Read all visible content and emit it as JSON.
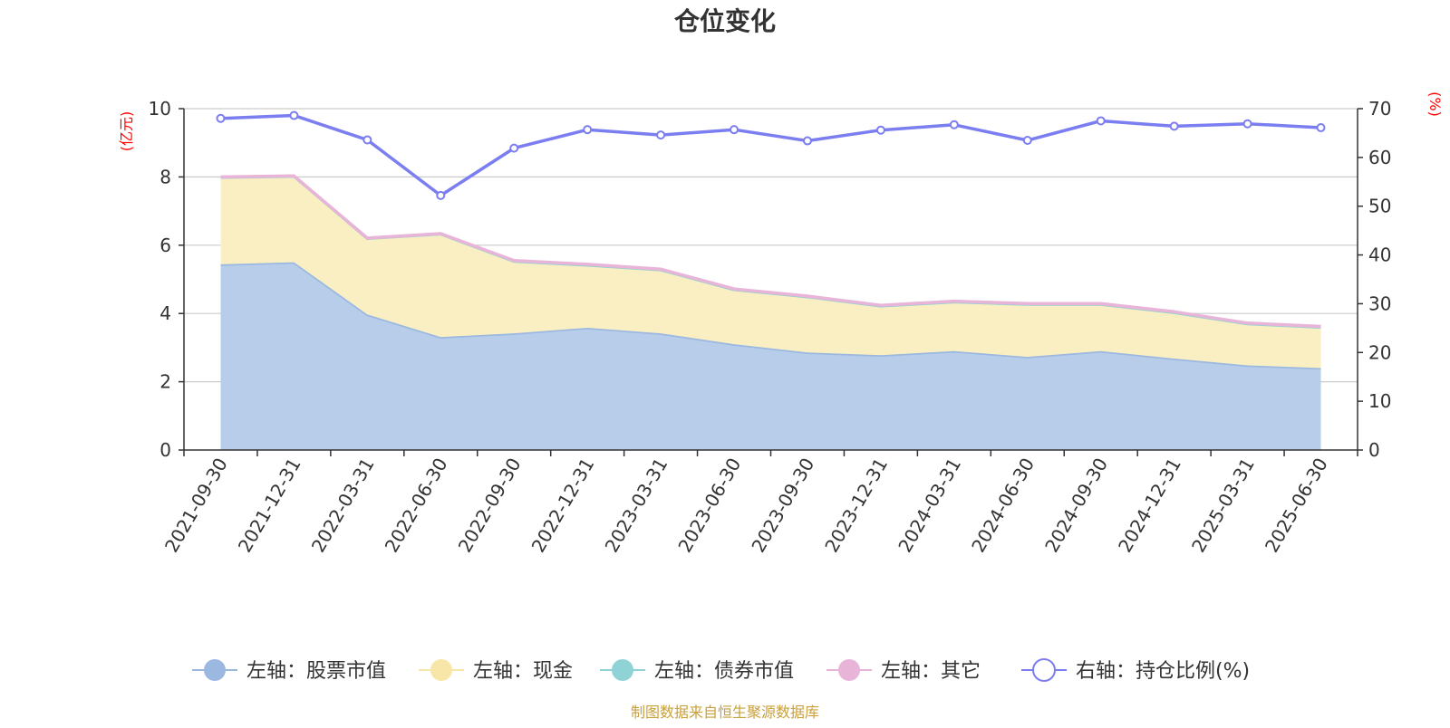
{
  "chart_data": {
    "type": "area",
    "title": "仓位变化",
    "left_axis_label": "(亿元)",
    "right_axis_label": "(%)",
    "left_ylim": [
      0,
      10
    ],
    "right_ylim": [
      0,
      70
    ],
    "left_ticks": [
      "0",
      "2",
      "4",
      "6",
      "8",
      "10"
    ],
    "right_ticks": [
      "0",
      "10",
      "20",
      "30",
      "40",
      "50",
      "60",
      "70"
    ],
    "categories": [
      "2021-09-30",
      "2021-12-31",
      "2022-03-31",
      "2022-06-30",
      "2022-09-30",
      "2022-12-31",
      "2023-03-31",
      "2023-06-30",
      "2023-09-30",
      "2023-12-31",
      "2024-03-31",
      "2024-06-30",
      "2024-09-30",
      "2024-12-31",
      "2025-03-31",
      "2025-06-30"
    ],
    "series": [
      {
        "name": "左轴：股票市值",
        "axis": "left",
        "stacked": true,
        "color": "#9bb8e0",
        "fill": "#b8cdea",
        "values": [
          5.44,
          5.5,
          3.97,
          3.31,
          3.42,
          3.58,
          3.42,
          3.1,
          2.86,
          2.78,
          2.9,
          2.73,
          2.9,
          2.68,
          2.48,
          2.4
        ]
      },
      {
        "name": "左轴：现金",
        "axis": "left",
        "stacked": true,
        "color": "#f8e6a8",
        "fill": "#faefc2",
        "values": [
          2.55,
          2.52,
          2.23,
          3.02,
          2.11,
          1.84,
          1.86,
          1.6,
          1.63,
          1.44,
          1.44,
          1.54,
          1.37,
          1.35,
          1.22,
          1.2
        ]
      },
      {
        "name": "左轴：债券市值",
        "axis": "left",
        "stacked": true,
        "color": "#8fd3d6",
        "fill": "#b9e5e7",
        "values": [
          0,
          0,
          0,
          0,
          0,
          0,
          0,
          0,
          0,
          0,
          0,
          0,
          0,
          0,
          0,
          0
        ]
      },
      {
        "name": "左轴：其它",
        "axis": "left",
        "stacked": true,
        "color": "#e8b4d8",
        "fill": "#f2d2e7",
        "values": [
          0.01,
          0.01,
          0.01,
          0.01,
          0.02,
          0.02,
          0.02,
          0.02,
          0.02,
          0.02,
          0.02,
          0.02,
          0.02,
          0.02,
          0.02,
          0.02
        ]
      },
      {
        "name": "右轴：持仓比例(%)",
        "axis": "right",
        "stacked": false,
        "color": "#7b7ef0",
        "values": [
          68.0,
          68.6,
          63.6,
          52.2,
          61.9,
          65.7,
          64.6,
          65.7,
          63.4,
          65.6,
          66.7,
          63.5,
          67.5,
          66.4,
          66.9,
          66.1
        ]
      }
    ],
    "grid": true,
    "legend_position": "bottom"
  },
  "footer": {
    "source": "制图数据来自恒生聚源数据库"
  },
  "colors": {
    "axis": "#333333",
    "grid": "#cccccc",
    "axis_label": "#ff0000",
    "source": "#c8a03c"
  }
}
